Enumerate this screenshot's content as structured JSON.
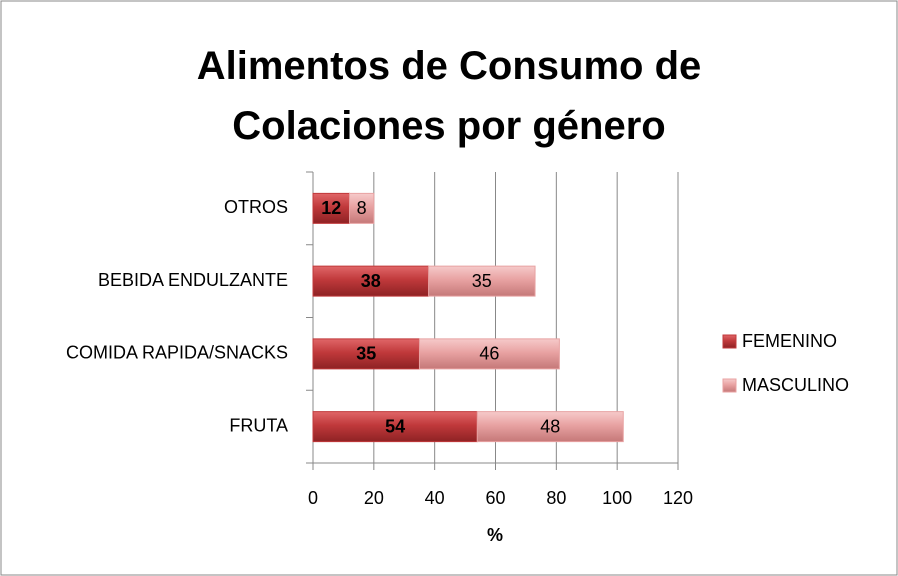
{
  "chart_data": {
    "type": "bar",
    "orientation": "horizontal",
    "stacked": true,
    "title": "Alimentos de Consumo de Colaciones por género",
    "x_label": "%",
    "categories": [
      "FRUTA",
      "COMIDA RAPIDA/SNACKS",
      "BEBIDA ENDULZANTE",
      "OTROS"
    ],
    "series": [
      {
        "name": "FEMENINO",
        "color": "#c0393b",
        "values": [
          54,
          35,
          38,
          12
        ]
      },
      {
        "name": "MASCULINO",
        "color": "#e8a2a2",
        "values": [
          48,
          46,
          35,
          8
        ]
      }
    ],
    "xlim": [
      0,
      120
    ],
    "xticks": [
      0,
      20,
      40,
      60,
      80,
      100,
      120
    ],
    "grid": true,
    "legend": "right"
  }
}
